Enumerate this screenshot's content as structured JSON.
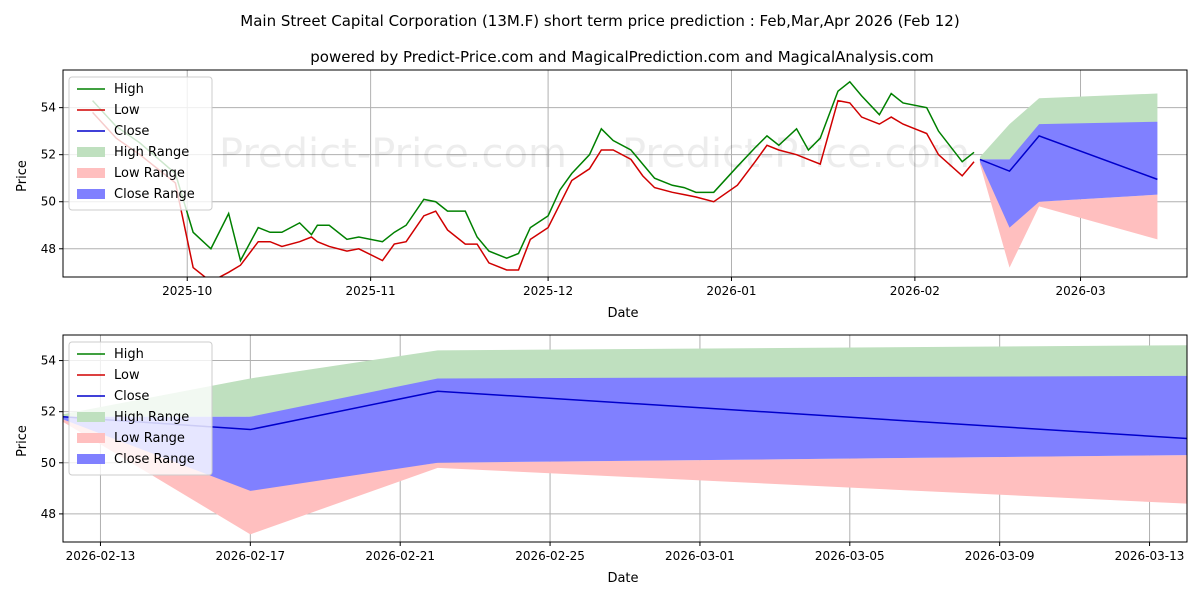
{
  "titles": {
    "main": "Main Street Capital Corporation (13M.F) short term price prediction : Feb,Mar,Apr 2026 (Feb 12)",
    "sub": "powered by Predict-Price.com and MagicalPrediction.com and MagicalAnalysis.com"
  },
  "watermark": "Predict-Price.com",
  "colors": {
    "high": "#008000",
    "low": "#d00000",
    "close": "#0000cc",
    "high_range": "#bfe0bf",
    "low_range": "#ffbfbf",
    "close_range": "#8080ff"
  },
  "legend": [
    "High",
    "Low",
    "Close",
    "High Range",
    "Low Range",
    "Close Range"
  ],
  "chart_data": [
    {
      "type": "line",
      "xlabel": "Date",
      "ylabel": "Price",
      "x_range": [
        "2025-09-10",
        "2026-03-19"
      ],
      "ylim": [
        46.8,
        55.6
      ],
      "x_ticks": [
        "2025-10",
        "2025-11",
        "2025-12",
        "2026-01",
        "2026-02",
        "2026-03"
      ],
      "x_tick_dates": [
        "2025-10-01",
        "2025-11-01",
        "2025-12-01",
        "2026-01-01",
        "2026-02-01",
        "2026-03-01"
      ],
      "y_ticks": [
        48,
        50,
        52,
        54
      ],
      "legend_position": "top-left",
      "history": {
        "dates": [
          "2025-09-15",
          "2025-09-19",
          "2025-09-23",
          "2025-09-29",
          "2025-10-02",
          "2025-10-05",
          "2025-10-08",
          "2025-10-10",
          "2025-10-13",
          "2025-10-15",
          "2025-10-17",
          "2025-10-20",
          "2025-10-22",
          "2025-10-23",
          "2025-10-25",
          "2025-10-28",
          "2025-10-30",
          "2025-11-03",
          "2025-11-05",
          "2025-11-07",
          "2025-11-10",
          "2025-11-12",
          "2025-11-14",
          "2025-11-17",
          "2025-11-19",
          "2025-11-21",
          "2025-11-24",
          "2025-11-26",
          "2025-11-28",
          "2025-12-01",
          "2025-12-03",
          "2025-12-05",
          "2025-12-08",
          "2025-12-10",
          "2025-12-12",
          "2025-12-15",
          "2025-12-17",
          "2025-12-19",
          "2025-12-22",
          "2025-12-24",
          "2025-12-26",
          "2025-12-29",
          "2026-01-02",
          "2026-01-05",
          "2026-01-07",
          "2026-01-09",
          "2026-01-12",
          "2026-01-14",
          "2026-01-16",
          "2026-01-19",
          "2026-01-21",
          "2026-01-23",
          "2026-01-26",
          "2026-01-28",
          "2026-01-30",
          "2026-02-03",
          "2026-02-05",
          "2026-02-09",
          "2026-02-11"
        ],
        "high": [
          54.3,
          53.2,
          52.5,
          51.2,
          48.7,
          48.0,
          49.5,
          47.5,
          48.9,
          48.7,
          48.7,
          49.1,
          48.6,
          49.0,
          49.0,
          48.4,
          48.5,
          48.3,
          48.7,
          49.0,
          50.1,
          50.0,
          49.6,
          49.6,
          48.5,
          47.9,
          47.6,
          47.8,
          48.9,
          49.4,
          50.5,
          51.2,
          52.0,
          53.1,
          52.6,
          52.2,
          51.6,
          51.0,
          50.7,
          50.6,
          50.4,
          50.4,
          51.5,
          52.3,
          52.8,
          52.4,
          53.1,
          52.2,
          52.7,
          54.7,
          55.1,
          54.5,
          53.7,
          54.6,
          54.2,
          54.0,
          53.0,
          51.7,
          52.1
        ],
        "low": [
          53.8,
          52.7,
          52.0,
          50.8,
          47.2,
          46.6,
          47.0,
          47.3,
          48.3,
          48.3,
          48.1,
          48.3,
          48.5,
          48.3,
          48.1,
          47.9,
          48.0,
          47.5,
          48.2,
          48.3,
          49.4,
          49.6,
          48.8,
          48.2,
          48.2,
          47.4,
          47.1,
          47.1,
          48.4,
          48.9,
          49.9,
          50.9,
          51.4,
          52.2,
          52.2,
          51.8,
          51.1,
          50.6,
          50.4,
          50.3,
          50.2,
          50.0,
          50.7,
          51.7,
          52.4,
          52.2,
          52.0,
          51.8,
          51.6,
          54.3,
          54.2,
          53.6,
          53.3,
          53.6,
          53.3,
          52.9,
          52.0,
          51.1,
          51.7
        ],
        "close": []
      },
      "forecast": {
        "dates": [
          "2026-02-12",
          "2026-02-17",
          "2026-02-22",
          "2026-03-14"
        ],
        "close": [
          51.8,
          51.3,
          52.8,
          50.95
        ],
        "high_range": {
          "upper": [
            51.9,
            53.3,
            54.4,
            54.6
          ],
          "lower": [
            51.8,
            51.8,
            52.8,
            53.4
          ]
        },
        "close_range": {
          "upper": [
            51.8,
            51.8,
            53.3,
            53.4
          ],
          "lower": [
            51.7,
            48.9,
            50.0,
            50.3
          ]
        },
        "low_range": {
          "upper": [
            51.7,
            49.0,
            50.0,
            50.3
          ],
          "lower": [
            51.6,
            47.2,
            49.8,
            48.4
          ]
        }
      }
    },
    {
      "type": "line",
      "xlabel": "Date",
      "ylabel": "Price",
      "x_range": [
        "2026-02-12",
        "2026-03-14"
      ],
      "ylim": [
        46.9,
        55.0
      ],
      "x_ticks": [
        "2026-02-13",
        "2026-02-17",
        "2026-02-21",
        "2026-02-25",
        "2026-03-01",
        "2026-03-05",
        "2026-03-09",
        "2026-03-13"
      ],
      "y_ticks": [
        48,
        50,
        52,
        54
      ],
      "legend_position": "top-left"
    }
  ]
}
